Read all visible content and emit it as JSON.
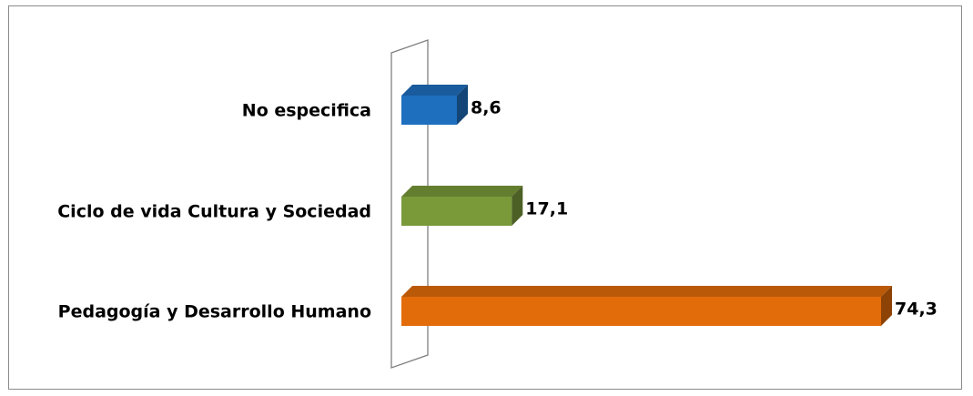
{
  "chart_data": {
    "type": "bar",
    "orientation": "horizontal",
    "style": "3d",
    "title": "",
    "xlabel": "",
    "ylabel": "",
    "xlim": [
      0,
      74.3
    ],
    "grid": false,
    "legend": "none",
    "categories": [
      "No especifica",
      "Ciclo de vida Cultura y Sociedad",
      "Pedagogía y Desarrollo Humano"
    ],
    "values": [
      8.6,
      17.1,
      74.3
    ],
    "value_labels": [
      "8,6",
      "17,1",
      "74,3"
    ],
    "colors": [
      "#1f6fbf",
      "#7a9a3a",
      "#e36c0a"
    ]
  }
}
